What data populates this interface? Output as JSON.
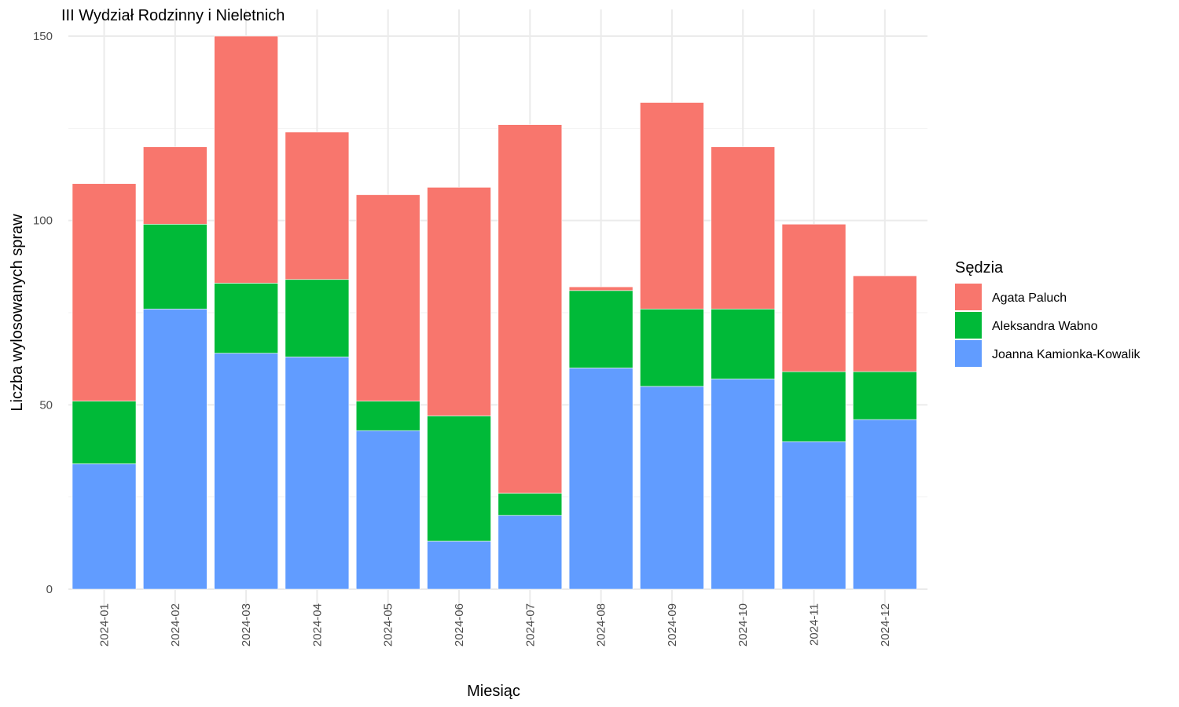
{
  "chart_data": {
    "type": "bar",
    "stacked": true,
    "title": "III Wydział Rodzinny i Nieletnich",
    "xlabel": "Miesiąc",
    "ylabel": "Liczba wylosowanych spraw",
    "ylim": [
      0,
      150
    ],
    "yticks": [
      0,
      50,
      100,
      150
    ],
    "grid": true,
    "legend": {
      "title": "Sędzia",
      "placement": "right"
    },
    "categories": [
      "2024-01",
      "2024-02",
      "2024-03",
      "2024-04",
      "2024-05",
      "2024-06",
      "2024-07",
      "2024-08",
      "2024-09",
      "2024-10",
      "2024-11",
      "2024-12"
    ],
    "series": [
      {
        "name": "Joanna Kamionka-Kowalik",
        "color": "#619CFF",
        "values": [
          34,
          76,
          64,
          63,
          43,
          13,
          20,
          60,
          55,
          57,
          40,
          46
        ]
      },
      {
        "name": "Aleksandra Wabno",
        "color": "#00BA38",
        "values": [
          17,
          23,
          19,
          21,
          8,
          34,
          6,
          21,
          21,
          19,
          19,
          13
        ]
      },
      {
        "name": "Agata Paluch",
        "color": "#F8766D",
        "values": [
          59,
          21,
          67,
          40,
          56,
          62,
          100,
          1,
          56,
          44,
          40,
          26
        ]
      }
    ],
    "legend_order": [
      "Agata Paluch",
      "Aleksandra Wabno",
      "Joanna Kamionka-Kowalik"
    ]
  }
}
